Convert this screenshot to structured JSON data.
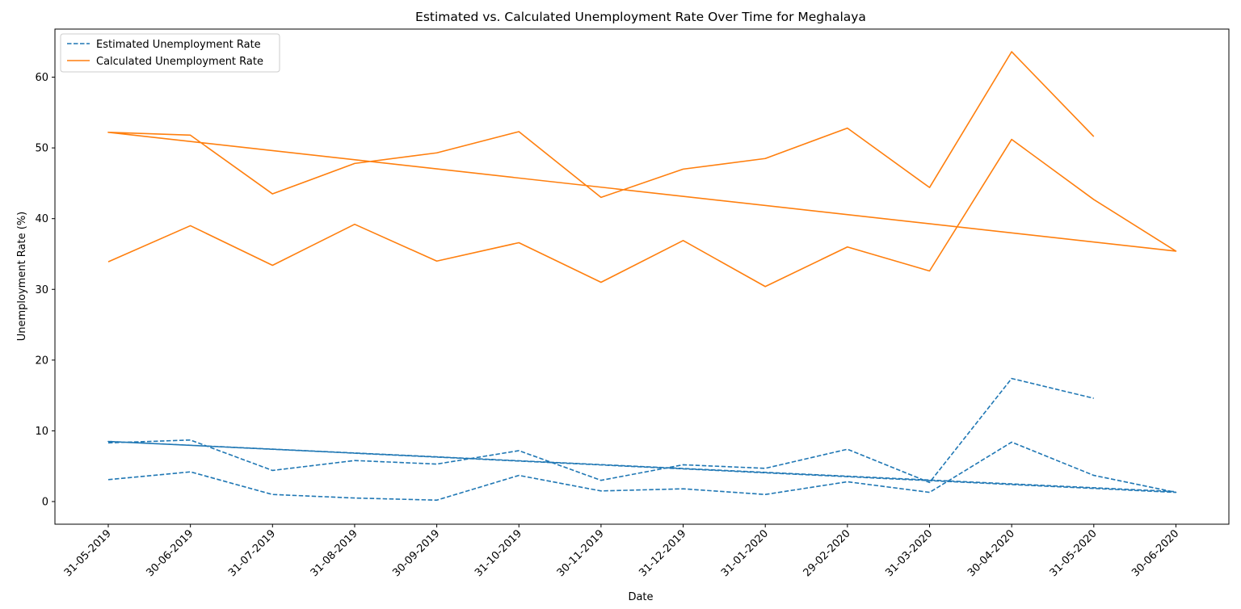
{
  "chart_data": {
    "type": "line",
    "title": "Estimated vs. Calculated Unemployment Rate Over Time for Meghalaya",
    "xlabel": "Date",
    "ylabel": "Unemployment Rate (%)",
    "ylim": [
      -3.2,
      66.8
    ],
    "yticks": [
      0,
      10,
      20,
      30,
      40,
      50,
      60
    ],
    "grid": false,
    "legend_position": "top-left",
    "categories": [
      "31-05-2019",
      "30-06-2019",
      "31-07-2019",
      "31-08-2019",
      "30-09-2019",
      "31-10-2019",
      "30-11-2019",
      "31-12-2019",
      "31-01-2020",
      "29-02-2020",
      "31-03-2020",
      "30-04-2020",
      "31-05-2020",
      "30-06-2020"
    ],
    "series": [
      {
        "name": "Estimated Unemployment Rate",
        "color": "#1f77b4",
        "style": "dashed",
        "points": [
          {
            "x": "31-05-2019",
            "y": 8.3
          },
          {
            "x": "30-06-2019",
            "y": 8.7
          },
          {
            "x": "31-07-2019",
            "y": 4.4
          },
          {
            "x": "31-08-2019",
            "y": 5.8
          },
          {
            "x": "30-09-2019",
            "y": 5.3
          },
          {
            "x": "31-10-2019",
            "y": 7.2
          },
          {
            "x": "30-11-2019",
            "y": 3.0
          },
          {
            "x": "31-12-2019",
            "y": 5.2
          },
          {
            "x": "31-01-2020",
            "y": 4.7
          },
          {
            "x": "29-02-2020",
            "y": 7.4
          },
          {
            "x": "31-03-2020",
            "y": 2.7
          },
          {
            "x": "30-04-2020",
            "y": 17.4
          },
          {
            "x": "31-05-2020",
            "y": 14.6
          },
          {
            "x": null,
            "y": null
          },
          {
            "x": "31-05-2019",
            "y": 3.1
          },
          {
            "x": "30-06-2019",
            "y": 4.2
          },
          {
            "x": "31-07-2019",
            "y": 1.0
          },
          {
            "x": "31-08-2019",
            "y": 0.5
          },
          {
            "x": "30-09-2019",
            "y": 0.2
          },
          {
            "x": "31-10-2019",
            "y": 3.7
          },
          {
            "x": "30-11-2019",
            "y": 1.5
          },
          {
            "x": "31-12-2019",
            "y": 1.8
          },
          {
            "x": "31-01-2020",
            "y": 1.0
          },
          {
            "x": "29-02-2020",
            "y": 2.8
          },
          {
            "x": "31-03-2020",
            "y": 1.3
          },
          {
            "x": "30-04-2020",
            "y": 8.4
          },
          {
            "x": "31-05-2020",
            "y": 3.7
          },
          {
            "x": "30-06-2020",
            "y": 1.3
          },
          {
            "x": "31-05-2019",
            "y": 8.5
          },
          {
            "x": "30-06-2020",
            "y": 1.4
          }
        ]
      },
      {
        "name": "Calculated Unemployment Rate",
        "color": "#ff7f0e",
        "style": "solid",
        "points": [
          {
            "x": "31-05-2019",
            "y": 52.2
          },
          {
            "x": "30-06-2019",
            "y": 51.8
          },
          {
            "x": "31-07-2019",
            "y": 43.5
          },
          {
            "x": "31-08-2019",
            "y": 47.8
          },
          {
            "x": "30-09-2019",
            "y": 49.3
          },
          {
            "x": "31-10-2019",
            "y": 52.3
          },
          {
            "x": "30-11-2019",
            "y": 43.0
          },
          {
            "x": "31-12-2019",
            "y": 47.0
          },
          {
            "x": "31-01-2020",
            "y": 48.5
          },
          {
            "x": "29-02-2020",
            "y": 52.8
          },
          {
            "x": "31-03-2020",
            "y": 44.4
          },
          {
            "x": "30-04-2020",
            "y": 63.6
          },
          {
            "x": "31-05-2020",
            "y": 51.6
          },
          {
            "x": null,
            "y": null
          },
          {
            "x": "31-05-2019",
            "y": 33.9
          },
          {
            "x": "30-06-2019",
            "y": 39.0
          },
          {
            "x": "31-07-2019",
            "y": 33.4
          },
          {
            "x": "31-08-2019",
            "y": 39.2
          },
          {
            "x": "30-09-2019",
            "y": 34.0
          },
          {
            "x": "31-10-2019",
            "y": 36.6
          },
          {
            "x": "30-11-2019",
            "y": 31.0
          },
          {
            "x": "31-12-2019",
            "y": 36.9
          },
          {
            "x": "31-01-2020",
            "y": 30.4
          },
          {
            "x": "29-02-2020",
            "y": 36.0
          },
          {
            "x": "31-03-2020",
            "y": 32.6
          },
          {
            "x": "30-04-2020",
            "y": 51.2
          },
          {
            "x": "31-05-2020",
            "y": 42.7
          },
          {
            "x": "30-06-2020",
            "y": 35.4
          },
          {
            "x": "31-05-2019",
            "y": 52.2
          },
          {
            "x": "30-06-2020",
            "y": 35.4
          }
        ]
      }
    ]
  }
}
